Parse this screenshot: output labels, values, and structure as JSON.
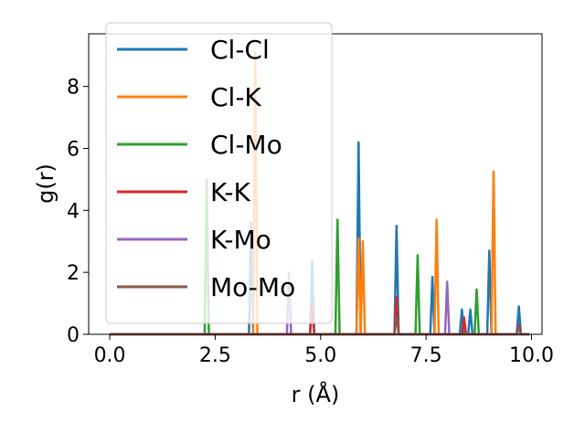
{
  "chart_data": {
    "type": "line",
    "xlabel": "r (Å)",
    "ylabel": "g(r)",
    "xlim": [
      -0.5,
      10.25
    ],
    "ylim": [
      0,
      9.7
    ],
    "xticks": [
      "0.0",
      "2.5",
      "5.0",
      "7.5",
      "10.0"
    ],
    "xtick_values": [
      0,
      2.5,
      5,
      7.5,
      10
    ],
    "yticks": [
      "0",
      "2",
      "4",
      "6",
      "8"
    ],
    "ytick_values": [
      0,
      2,
      4,
      6,
      8
    ],
    "grid": false,
    "legend_position": "top-left",
    "series": [
      {
        "name": "Cl-Cl",
        "color": "#1f77b4",
        "peaks": [
          [
            3.35,
            3.6
          ],
          [
            4.8,
            2.35
          ],
          [
            5.9,
            6.2
          ],
          [
            6.8,
            3.5
          ],
          [
            7.65,
            1.85
          ],
          [
            8.35,
            0.8
          ],
          [
            8.55,
            0.8
          ],
          [
            9.0,
            2.7
          ],
          [
            9.7,
            0.9
          ]
        ]
      },
      {
        "name": "Cl-K",
        "color": "#ff7f0e",
        "peaks": [
          [
            3.45,
            9.1
          ],
          [
            5.9,
            3.1
          ],
          [
            6.0,
            3.0
          ],
          [
            7.75,
            3.7
          ],
          [
            9.1,
            5.25
          ]
        ]
      },
      {
        "name": "Cl-Mo",
        "color": "#2ca02c",
        "peaks": [
          [
            2.3,
            5.0
          ],
          [
            5.4,
            3.7
          ],
          [
            7.3,
            2.55
          ],
          [
            8.7,
            1.45
          ]
        ]
      },
      {
        "name": "K-K",
        "color": "#d62728",
        "peaks": [
          [
            4.8,
            1.0
          ],
          [
            6.8,
            1.2
          ],
          [
            8.4,
            0.55
          ],
          [
            9.7,
            0.3
          ]
        ]
      },
      {
        "name": "K-Mo",
        "color": "#9467bd",
        "peaks": [
          [
            4.25,
            2.0
          ],
          [
            8.0,
            1.7
          ]
        ]
      },
      {
        "name": "Mo-Mo",
        "color": "#8c564b",
        "peaks": [
          [
            6.8,
            0.6
          ],
          [
            9.7,
            0.25
          ]
        ]
      }
    ]
  }
}
